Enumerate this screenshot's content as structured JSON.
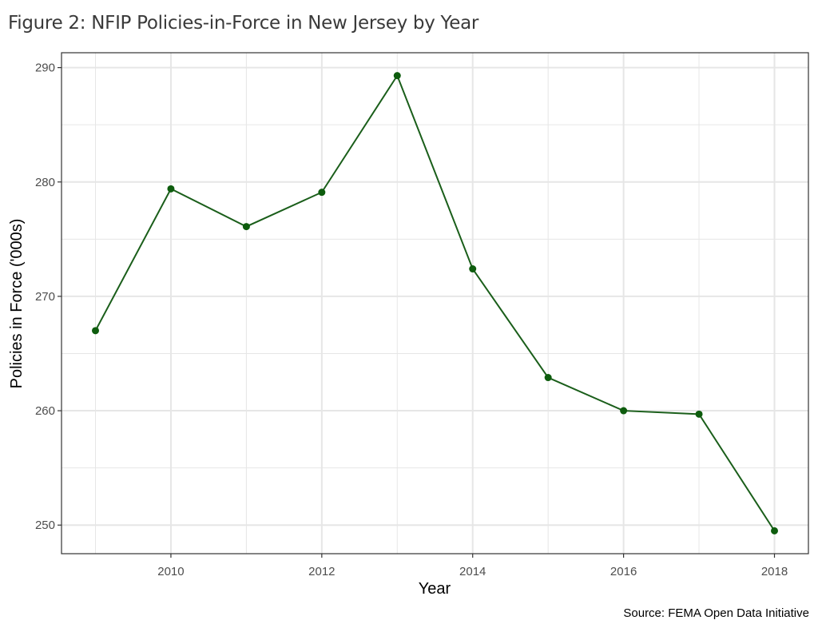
{
  "title": "Figure 2: NFIP Policies-in-Force in New Jersey by Year",
  "caption": "Source: FEMA Open Data Initiative",
  "colors": {
    "line": "#1a5e1a",
    "point": "#0d5c0d",
    "grid": "#e6e6e6",
    "panel_border": "#333333"
  },
  "chart_data": {
    "type": "line",
    "title": "Figure 2: NFIP Policies-in-Force in New Jersey by Year",
    "xlabel": "Year",
    "ylabel": "Policies in Force ('000s)",
    "x": [
      2009,
      2010,
      2011,
      2012,
      2013,
      2014,
      2015,
      2016,
      2017,
      2018
    ],
    "series": [
      {
        "name": "Policies in Force",
        "values": [
          267.0,
          279.4,
          276.1,
          279.1,
          289.3,
          272.4,
          262.9,
          260.0,
          259.7,
          249.5
        ]
      }
    ],
    "xticks": [
      "2010",
      "2012",
      "2014",
      "2016",
      "2018"
    ],
    "yticks": [
      "250",
      "260",
      "270",
      "280",
      "290"
    ],
    "xlim": [
      2008.55,
      2018.45
    ],
    "ylim": [
      247.5,
      291.3
    ],
    "grid": true,
    "legend": "none",
    "markers": true
  }
}
